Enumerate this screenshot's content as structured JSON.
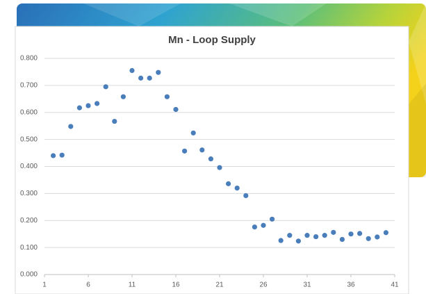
{
  "chart_data": {
    "type": "scatter",
    "title": "Mn - Loop Supply",
    "x": [
      2,
      3,
      4,
      5,
      6,
      7,
      8,
      9,
      10,
      11,
      12,
      13,
      14,
      15,
      16,
      17,
      18,
      19,
      20,
      21,
      22,
      23,
      24,
      25,
      26,
      27,
      28,
      29,
      30,
      31,
      32,
      33,
      34,
      35,
      36,
      37,
      38,
      39,
      40
    ],
    "values": [
      0.44,
      0.442,
      0.548,
      0.617,
      0.625,
      0.633,
      0.695,
      0.567,
      0.658,
      0.755,
      0.727,
      0.727,
      0.748,
      0.658,
      0.611,
      0.457,
      0.524,
      0.461,
      0.428,
      0.396,
      0.336,
      0.32,
      0.292,
      0.176,
      0.182,
      0.205,
      0.126,
      0.145,
      0.124,
      0.145,
      0.14,
      0.145,
      0.156,
      0.13,
      0.15,
      0.152,
      0.133,
      0.139,
      0.155
    ],
    "color": "#4a7ebb",
    "xlim": [
      1,
      41
    ],
    "xticks": [
      1,
      6,
      11,
      16,
      21,
      26,
      31,
      36,
      41
    ],
    "ylim": [
      0,
      0.8
    ],
    "yticks": [
      {
        "value": 0,
        "label": "0.000"
      },
      {
        "value": 0.1,
        "label": "0.100"
      },
      {
        "value": 0.2,
        "label": "0.200"
      },
      {
        "value": 0.3,
        "label": "0.300"
      },
      {
        "value": 0.4,
        "label": "0.400"
      },
      {
        "value": 0.5,
        "label": "0.500"
      },
      {
        "value": 0.6,
        "label": "0.600"
      },
      {
        "value": 0.7,
        "label": "0.700"
      },
      {
        "value": 0.8,
        "label": "0.800"
      }
    ],
    "grid": true
  }
}
